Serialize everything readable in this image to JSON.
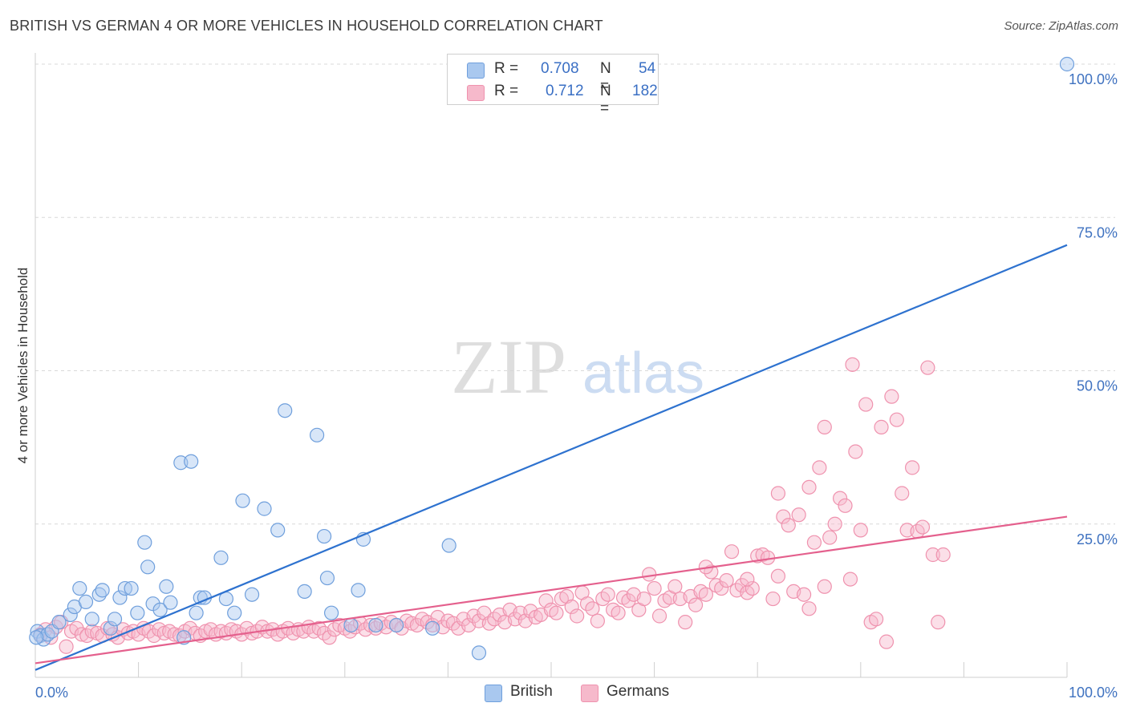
{
  "title": "BRITISH VS GERMAN 4 OR MORE VEHICLES IN HOUSEHOLD CORRELATION CHART",
  "source": "Source: ZipAtlas.com",
  "watermark": {
    "zip": "ZIP",
    "atlas": "atlas"
  },
  "legend": {
    "british": {
      "r_label": "R =",
      "r_value": "0.708",
      "n_label": "N =",
      "n_value": "54"
    },
    "germans": {
      "r_label": "R =",
      "r_value": "0.712",
      "n_label": "N =",
      "n_value": "182"
    }
  },
  "bottom_legend": {
    "british": "British",
    "germans": "Germans"
  },
  "colors": {
    "british_fill": "#a9c8ef",
    "british_stroke": "#6f9fdc",
    "british_line": "#2e72cf",
    "germans_fill": "#f6b9cb",
    "germans_stroke": "#ef92ae",
    "germans_line": "#e4608d",
    "axis_label": "#3f72c0",
    "grid": "#d9d9d9"
  },
  "chart_data": {
    "type": "scatter",
    "title": "BRITISH VS GERMAN 4 OR MORE VEHICLES IN HOUSEHOLD CORRELATION CHART",
    "xlabel": "",
    "ylabel": "4 or more Vehicles in Household",
    "xlim": [
      0,
      100
    ],
    "ylim": [
      0,
      100
    ],
    "x_tick_labels": [
      "0.0%",
      "100.0%"
    ],
    "y_tick_labels": [
      "100.0%",
      "75.0%",
      "50.0%",
      "25.0%"
    ],
    "y_tick_values": [
      100,
      75,
      50,
      25
    ],
    "grid": true,
    "legend_position": "top-center",
    "series": [
      {
        "name": "British",
        "r": 0.708,
        "n": 54,
        "trend": {
          "x": [
            0,
            100
          ],
          "y": [
            1.2,
            70.5
          ]
        },
        "points": [
          [
            0.2,
            7.5
          ],
          [
            0.5,
            6.8
          ],
          [
            0.8,
            6.2
          ],
          [
            1.2,
            7.0
          ],
          [
            1.6,
            7.5
          ],
          [
            2.3,
            9.0
          ],
          [
            3.4,
            10.2
          ],
          [
            3.8,
            11.5
          ],
          [
            4.3,
            14.5
          ],
          [
            4.9,
            12.3
          ],
          [
            5.5,
            9.5
          ],
          [
            6.2,
            13.5
          ],
          [
            6.5,
            14.2
          ],
          [
            7.3,
            8.0
          ],
          [
            7.7,
            9.5
          ],
          [
            8.2,
            13.0
          ],
          [
            8.7,
            14.5
          ],
          [
            9.3,
            14.5
          ],
          [
            9.9,
            10.5
          ],
          [
            10.6,
            22.0
          ],
          [
            10.9,
            18.0
          ],
          [
            11.4,
            12.0
          ],
          [
            12.1,
            11.0
          ],
          [
            12.7,
            14.8
          ],
          [
            13.1,
            12.2
          ],
          [
            14.1,
            35.0
          ],
          [
            14.4,
            6.5
          ],
          [
            15.1,
            35.2
          ],
          [
            15.6,
            10.5
          ],
          [
            16.0,
            13.0
          ],
          [
            16.4,
            13.0
          ],
          [
            18.0,
            19.5
          ],
          [
            18.5,
            12.8
          ],
          [
            19.3,
            10.5
          ],
          [
            20.1,
            28.8
          ],
          [
            21.0,
            13.5
          ],
          [
            22.2,
            27.5
          ],
          [
            23.5,
            24.0
          ],
          [
            24.2,
            43.5
          ],
          [
            26.1,
            14.0
          ],
          [
            27.3,
            39.5
          ],
          [
            28.0,
            23.0
          ],
          [
            28.3,
            16.2
          ],
          [
            28.7,
            10.5
          ],
          [
            30.6,
            8.5
          ],
          [
            31.3,
            14.2
          ],
          [
            31.8,
            22.5
          ],
          [
            33.0,
            8.5
          ],
          [
            35.0,
            8.5
          ],
          [
            38.5,
            8.0
          ],
          [
            40.1,
            21.5
          ],
          [
            43.0,
            4.0
          ],
          [
            100.0,
            100.0
          ],
          [
            0.1,
            6.5
          ]
        ]
      },
      {
        "name": "Germans",
        "r": 0.712,
        "n": 182,
        "trend": {
          "x": [
            0,
            100
          ],
          "y": [
            2.3,
            26.2
          ]
        },
        "points": [
          [
            0.5,
            7.0
          ],
          [
            1.0,
            7.8
          ],
          [
            1.5,
            6.5
          ],
          [
            2.0,
            8.2
          ],
          [
            2.5,
            9.0
          ],
          [
            3.0,
            5.0
          ],
          [
            3.5,
            7.5
          ],
          [
            4.0,
            8.0
          ],
          [
            4.5,
            7.0
          ],
          [
            5.0,
            6.8
          ],
          [
            5.5,
            7.5
          ],
          [
            6.0,
            7.2
          ],
          [
            6.5,
            6.8
          ],
          [
            7.0,
            8.0
          ],
          [
            7.5,
            7.0
          ],
          [
            8.0,
            6.5
          ],
          [
            8.5,
            7.8
          ],
          [
            9.0,
            7.2
          ],
          [
            9.5,
            7.5
          ],
          [
            10.0,
            7.0
          ],
          [
            10.5,
            8.0
          ],
          [
            11.0,
            7.5
          ],
          [
            11.5,
            6.8
          ],
          [
            12.0,
            7.8
          ],
          [
            12.5,
            7.2
          ],
          [
            13.0,
            7.5
          ],
          [
            13.5,
            7.0
          ],
          [
            14.0,
            6.8
          ],
          [
            14.5,
            7.5
          ],
          [
            15.0,
            8.0
          ],
          [
            15.5,
            7.2
          ],
          [
            16.0,
            6.8
          ],
          [
            16.5,
            7.5
          ],
          [
            17.0,
            7.8
          ],
          [
            17.5,
            7.0
          ],
          [
            18.0,
            7.5
          ],
          [
            18.5,
            7.2
          ],
          [
            19.0,
            7.8
          ],
          [
            19.5,
            7.5
          ],
          [
            20.0,
            7.0
          ],
          [
            20.5,
            8.0
          ],
          [
            21.0,
            7.2
          ],
          [
            21.5,
            7.5
          ],
          [
            22.0,
            8.2
          ],
          [
            22.5,
            7.5
          ],
          [
            23.0,
            7.8
          ],
          [
            23.5,
            7.0
          ],
          [
            24.0,
            7.5
          ],
          [
            24.5,
            8.0
          ],
          [
            25.0,
            7.2
          ],
          [
            25.5,
            7.8
          ],
          [
            26.0,
            7.5
          ],
          [
            26.5,
            8.2
          ],
          [
            27.0,
            7.5
          ],
          [
            27.5,
            8.0
          ],
          [
            28.0,
            7.2
          ],
          [
            28.5,
            6.5
          ],
          [
            29.0,
            7.8
          ],
          [
            29.5,
            8.5
          ],
          [
            30.0,
            8.0
          ],
          [
            30.5,
            7.5
          ],
          [
            31.0,
            8.2
          ],
          [
            31.5,
            8.8
          ],
          [
            32.0,
            7.8
          ],
          [
            32.5,
            8.5
          ],
          [
            33.0,
            8.0
          ],
          [
            33.5,
            8.8
          ],
          [
            34.0,
            8.2
          ],
          [
            34.5,
            9.0
          ],
          [
            35.0,
            8.5
          ],
          [
            35.5,
            8.0
          ],
          [
            36.0,
            9.2
          ],
          [
            36.5,
            8.8
          ],
          [
            37.0,
            8.5
          ],
          [
            37.5,
            9.5
          ],
          [
            38.0,
            9.0
          ],
          [
            38.5,
            8.5
          ],
          [
            39.0,
            9.8
          ],
          [
            39.5,
            8.2
          ],
          [
            40.0,
            9.2
          ],
          [
            40.5,
            8.8
          ],
          [
            41.0,
            8.0
          ],
          [
            41.5,
            9.5
          ],
          [
            42.0,
            8.5
          ],
          [
            42.5,
            10.0
          ],
          [
            43.0,
            9.2
          ],
          [
            43.5,
            10.5
          ],
          [
            44.0,
            8.8
          ],
          [
            44.5,
            9.5
          ],
          [
            45.0,
            10.2
          ],
          [
            45.5,
            9.0
          ],
          [
            46.0,
            11.0
          ],
          [
            46.5,
            9.5
          ],
          [
            47.0,
            10.5
          ],
          [
            47.5,
            9.2
          ],
          [
            48.0,
            10.8
          ],
          [
            48.5,
            9.8
          ],
          [
            49.0,
            10.2
          ],
          [
            49.5,
            12.5
          ],
          [
            50.0,
            11.0
          ],
          [
            50.5,
            10.5
          ],
          [
            51.0,
            12.8
          ],
          [
            51.5,
            13.2
          ],
          [
            52.0,
            11.5
          ],
          [
            52.5,
            10.0
          ],
          [
            53.0,
            13.8
          ],
          [
            53.5,
            12.0
          ],
          [
            54.0,
            11.2
          ],
          [
            54.5,
            9.2
          ],
          [
            55.0,
            12.8
          ],
          [
            55.5,
            13.5
          ],
          [
            56.0,
            11.0
          ],
          [
            56.5,
            10.5
          ],
          [
            57.0,
            13.0
          ],
          [
            57.5,
            12.5
          ],
          [
            58.0,
            13.5
          ],
          [
            58.5,
            11.0
          ],
          [
            59.0,
            12.8
          ],
          [
            59.5,
            16.8
          ],
          [
            60.0,
            14.5
          ],
          [
            60.5,
            10.0
          ],
          [
            61.0,
            12.5
          ],
          [
            61.5,
            13.0
          ],
          [
            62.0,
            14.8
          ],
          [
            62.5,
            12.8
          ],
          [
            63.0,
            9.0
          ],
          [
            63.5,
            13.2
          ],
          [
            64.0,
            11.8
          ],
          [
            64.5,
            14.0
          ],
          [
            65.0,
            13.5
          ],
          [
            65.5,
            17.2
          ],
          [
            66.0,
            15.0
          ],
          [
            66.5,
            14.5
          ],
          [
            67.0,
            15.8
          ],
          [
            67.5,
            20.5
          ],
          [
            68.0,
            14.2
          ],
          [
            68.5,
            15.0
          ],
          [
            69.0,
            13.8
          ],
          [
            69.5,
            14.5
          ],
          [
            70.0,
            19.8
          ],
          [
            70.5,
            20.0
          ],
          [
            71.0,
            19.5
          ],
          [
            71.5,
            12.8
          ],
          [
            72.0,
            16.5
          ],
          [
            72.5,
            26.2
          ],
          [
            73.0,
            24.8
          ],
          [
            73.5,
            14.0
          ],
          [
            74.0,
            26.5
          ],
          [
            74.5,
            13.5
          ],
          [
            75.0,
            11.2
          ],
          [
            75.5,
            22.0
          ],
          [
            76.0,
            34.2
          ],
          [
            76.5,
            14.8
          ],
          [
            77.0,
            22.8
          ],
          [
            77.5,
            25.0
          ],
          [
            78.0,
            29.2
          ],
          [
            78.5,
            28.0
          ],
          [
            79.0,
            16.0
          ],
          [
            79.5,
            36.8
          ],
          [
            80.0,
            24.0
          ],
          [
            80.5,
            44.5
          ],
          [
            81.0,
            9.0
          ],
          [
            81.5,
            9.5
          ],
          [
            82.0,
            40.8
          ],
          [
            82.5,
            5.8
          ],
          [
            83.0,
            45.8
          ],
          [
            83.5,
            42.0
          ],
          [
            84.0,
            30.0
          ],
          [
            84.5,
            24.0
          ],
          [
            85.0,
            34.2
          ],
          [
            85.5,
            23.8
          ],
          [
            86.0,
            24.5
          ],
          [
            86.5,
            50.5
          ],
          [
            87.0,
            20.0
          ],
          [
            87.5,
            9.0
          ],
          [
            88.0,
            20.0
          ],
          [
            72.0,
            30.0
          ],
          [
            75.0,
            31.0
          ],
          [
            76.5,
            40.8
          ],
          [
            79.2,
            51.0
          ],
          [
            69.0,
            16.0
          ],
          [
            65.0,
            18.0
          ]
        ]
      }
    ]
  }
}
